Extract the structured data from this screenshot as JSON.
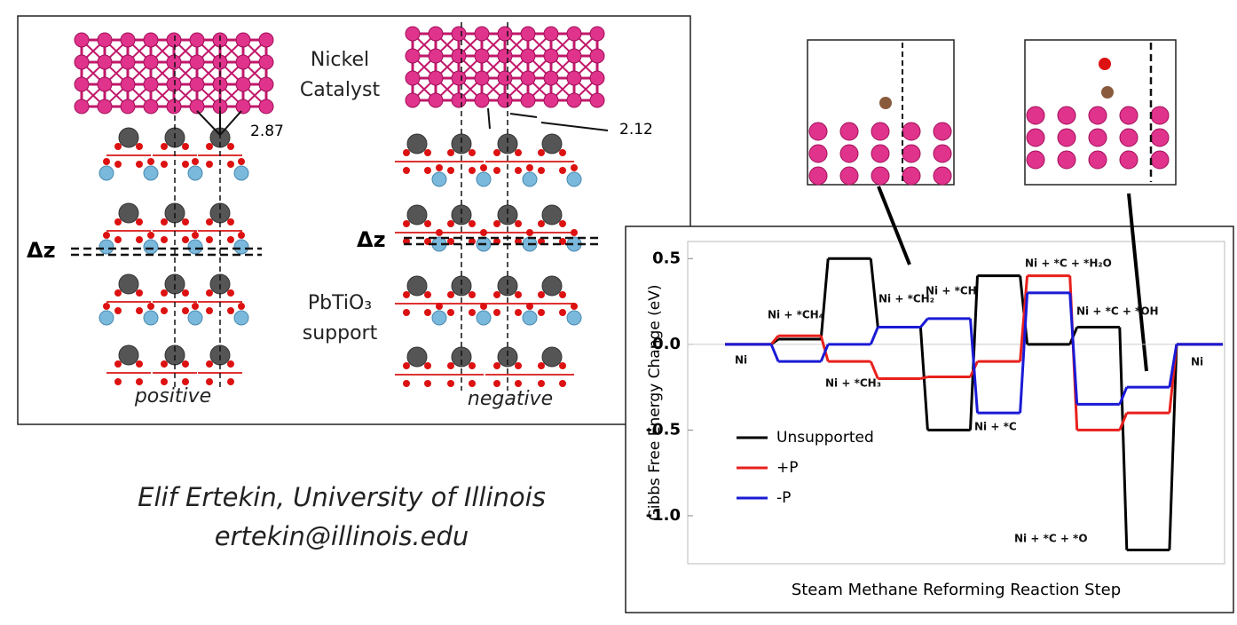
{
  "left_panel": {
    "catalyst_label": [
      "Nickel",
      "Catalyst"
    ],
    "distance_positive": "2.87",
    "distance_negative": "2.12",
    "dz_label": "Δz",
    "support_label": [
      "PbTiO₃",
      "support"
    ],
    "positive_label": "positive",
    "negative_label": "negative"
  },
  "author": {
    "name": "Elif Ertekin, University of Illinois",
    "email": "ertekin@illinois.edu"
  },
  "chart_data": {
    "type": "line",
    "xlabel": "Steam Methane Reforming Reaction Step",
    "ylabel": "Gibbs Free Energy Change (eV)",
    "categories": [
      "Ni",
      "Ni + *CH₄",
      "Ni + *CH₃",
      "Ni + *CH₂",
      "Ni + *CH",
      "Ni + *C",
      "Ni + *C + *H₂O",
      "Ni + *C + *OH",
      "Ni + *C + *O",
      "Ni"
    ],
    "series": [
      {
        "name": "Unsupported",
        "color": "#000000",
        "values": [
          0,
          0.03,
          0.5,
          0.1,
          -0.5,
          0.4,
          0,
          0.1,
          -1.2,
          0
        ]
      },
      {
        "name": "+P",
        "color": "#e8201c",
        "values": [
          0,
          0.05,
          -0.1,
          -0.2,
          -0.19,
          -0.1,
          0.4,
          -0.5,
          -0.4,
          0
        ]
      },
      {
        "name": "-P",
        "color": "#1a1ad6",
        "values": [
          0,
          -0.1,
          0,
          0.1,
          0.15,
          -0.4,
          0.3,
          -0.35,
          -0.25,
          0
        ]
      }
    ],
    "ylim": [
      -1.28,
      0.6
    ],
    "yticks": [
      {
        "value": -1.0,
        "label": "-1.0"
      },
      -0.5,
      {
        "value": 0.0,
        "label": "0.0"
      },
      0.5
    ]
  }
}
